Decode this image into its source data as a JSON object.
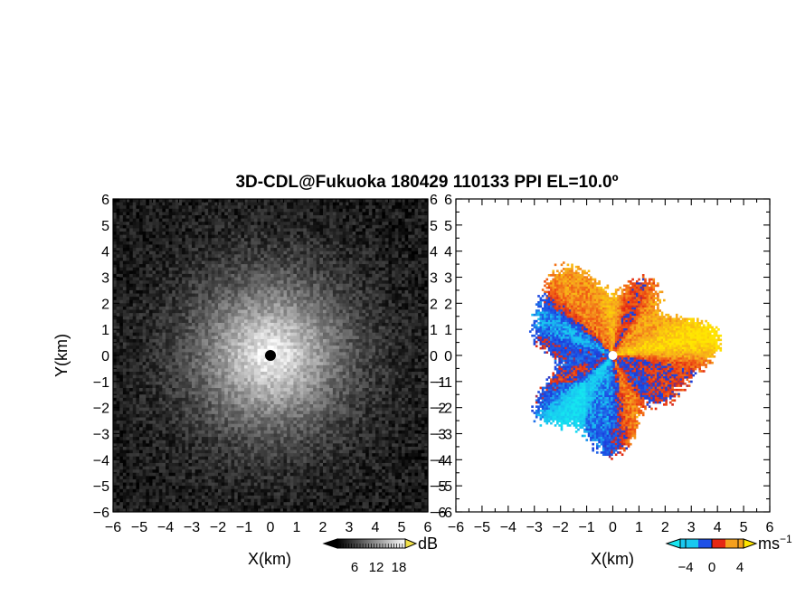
{
  "chart_data": [
    {
      "type": "heatmap",
      "title": "3D-CDL@Fukuoka 180429 110133 PPI EL=10.0º",
      "panel": "reflectivity",
      "xlabel": "X(km)",
      "ylabel": "Y(km)",
      "xlim": [
        -6,
        6
      ],
      "ylim": [
        -6,
        6
      ],
      "x_ticks": [
        "−6",
        "−5",
        "−4",
        "−3",
        "−2",
        "−1",
        "0",
        "1",
        "2",
        "3",
        "4",
        "5",
        "6"
      ],
      "y_ticks": [
        "−6",
        "−5",
        "−4",
        "−3",
        "−2",
        "−1",
        "0",
        "1",
        "2",
        "3",
        "4",
        "5",
        "6"
      ],
      "colormap": "grayscale (black to white)",
      "colorbar": {
        "unit": "dB",
        "ticks": [
          "6",
          "12",
          "18"
        ],
        "range": [
          0,
          24
        ]
      },
      "pattern": "bright near radar (0,0), decaying radially to dark at edges; dark dot at origin"
    },
    {
      "type": "heatmap",
      "panel": "doppler-velocity",
      "xlabel": "X(km)",
      "xlim": [
        -6,
        6
      ],
      "ylim": [
        -6,
        6
      ],
      "x_ticks": [
        "−6",
        "−5",
        "−4",
        "−3",
        "−2",
        "−1",
        "0",
        "1",
        "2",
        "3",
        "4",
        "5",
        "6"
      ],
      "y_ticks": [
        "−6",
        "−5",
        "−4",
        "−3",
        "−2",
        "−1",
        "0",
        "1",
        "2",
        "3",
        "4",
        "5",
        "6"
      ],
      "colormap": "cyan-blue-red-orange-yellow (diverging)",
      "colorbar": {
        "unit": "ms",
        "unit_sup": "−1",
        "ticks": [
          "−4",
          "0",
          "4"
        ],
        "range": [
          -6,
          6
        ]
      },
      "coverage_radius_km": 4,
      "pattern": "blue/cyan (approaching) toward lower-left, red/orange/yellow (receding) toward upper-right"
    }
  ]
}
